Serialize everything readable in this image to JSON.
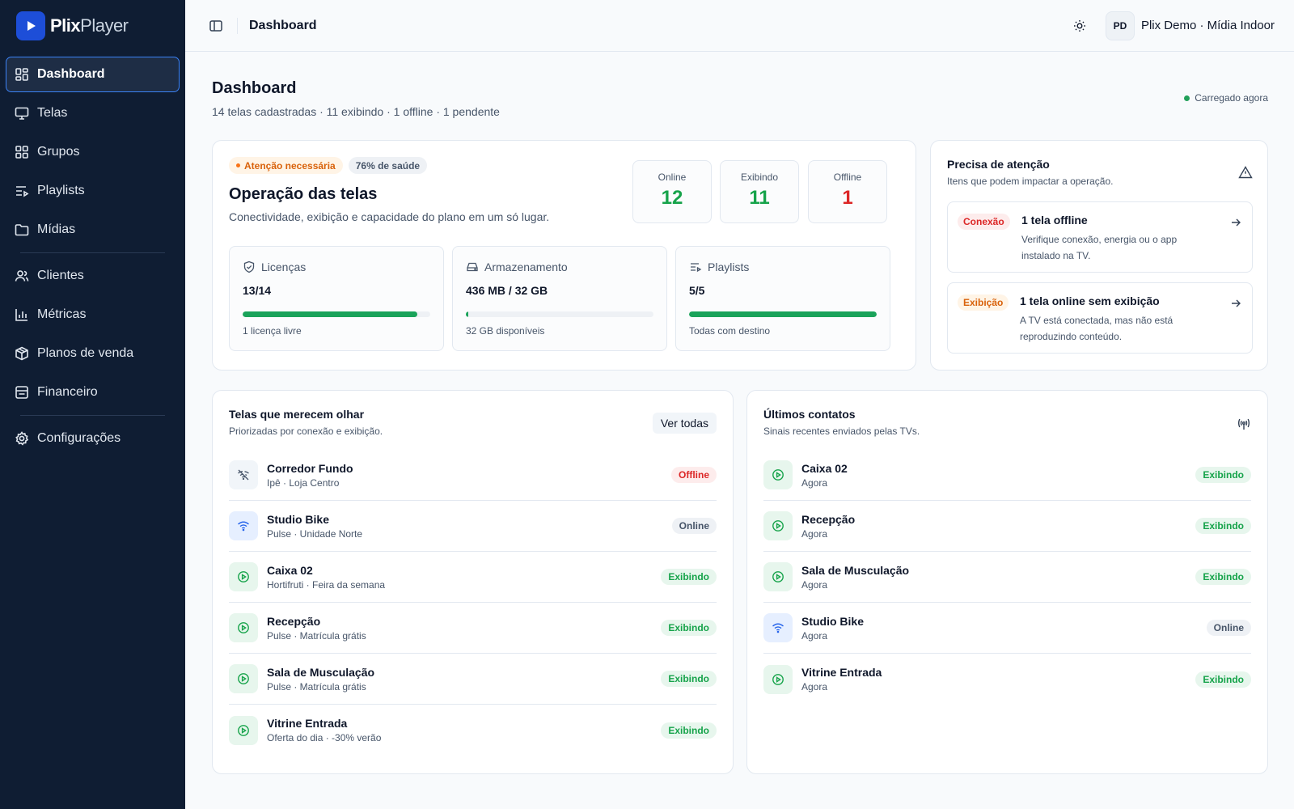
{
  "brand": {
    "name_bold": "Plix",
    "name_light": "Player"
  },
  "sidebar": {
    "items": [
      {
        "label": "Dashboard",
        "icon": "dashboard-icon"
      },
      {
        "label": "Telas",
        "icon": "monitor-icon"
      },
      {
        "label": "Grupos",
        "icon": "grid-icon"
      },
      {
        "label": "Playlists",
        "icon": "playlist-icon"
      },
      {
        "label": "Mídias",
        "icon": "folder-icon"
      },
      {
        "label": "Clientes",
        "icon": "users-icon"
      },
      {
        "label": "Métricas",
        "icon": "bar-chart-icon"
      },
      {
        "label": "Planos de venda",
        "icon": "package-icon"
      },
      {
        "label": "Financeiro",
        "icon": "receipt-icon"
      },
      {
        "label": "Configurações",
        "icon": "gear-icon"
      }
    ]
  },
  "topbar": {
    "title": "Dashboard",
    "avatar_initials": "PD",
    "account": "Plix Demo · Mídia Indoor"
  },
  "page": {
    "title": "Dashboard",
    "subtitle": "14 telas cadastradas · 11 exibindo · 1 offline · 1 pendente",
    "loaded": "Carregado agora"
  },
  "operations": {
    "pill_attention": "Atenção necessária",
    "pill_health": "76% de saúde",
    "title": "Operação das telas",
    "subtitle": "Conectividade, exibição e capacidade do plano em um só lugar.",
    "stats": [
      {
        "label": "Online",
        "value": "12"
      },
      {
        "label": "Exibindo",
        "value": "11"
      },
      {
        "label": "Offline",
        "value": "1"
      }
    ],
    "metrics": [
      {
        "label": "Licenças",
        "value": "13/14",
        "progress": 0.93,
        "footer": "1 licença livre"
      },
      {
        "label": "Armazenamento",
        "value": "436 MB / 32 GB",
        "progress": 0.013,
        "footer": "32 GB disponíveis"
      },
      {
        "label": "Playlists",
        "value": "5/5",
        "progress": 1.0,
        "footer": "Todas com destino"
      }
    ]
  },
  "attention": {
    "title": "Precisa de atenção",
    "subtitle": "Itens que podem impactar a operação.",
    "alerts": [
      {
        "tag": "Conexão",
        "title": "1 tela offline",
        "desc": "Verifique conexão, energia ou o app instalado na TV."
      },
      {
        "tag": "Exibição",
        "title": "1 tela online sem exibição",
        "desc": "A TV está conectada, mas não está reproduzindo conteúdo."
      }
    ]
  },
  "watch": {
    "title": "Telas que merecem olhar",
    "subtitle": "Priorizadas por conexão e exibição.",
    "button": "Ver todas",
    "rows": [
      {
        "name": "Corredor Fundo",
        "sub": "Ipê · Loja Centro",
        "status": "Offline",
        "icon": "wifi-off-icon"
      },
      {
        "name": "Studio Bike",
        "sub": "Pulse · Unidade Norte",
        "status": "Online",
        "icon": "wifi-icon"
      },
      {
        "name": "Caixa 02",
        "sub": "Hortifruti · Feira da semana",
        "status": "Exibindo",
        "icon": "play-circle-icon"
      },
      {
        "name": "Recepção",
        "sub": "Pulse · Matrícula grátis",
        "status": "Exibindo",
        "icon": "play-circle-icon"
      },
      {
        "name": "Sala de Musculação",
        "sub": "Pulse · Matrícula grátis",
        "status": "Exibindo",
        "icon": "play-circle-icon"
      },
      {
        "name": "Vitrine Entrada",
        "sub": "Oferta do dia · -30% verão",
        "status": "Exibindo",
        "icon": "play-circle-icon"
      }
    ]
  },
  "contacts": {
    "title": "Últimos contatos",
    "subtitle": "Sinais recentes enviados pelas TVs.",
    "rows": [
      {
        "name": "Caixa 02",
        "sub": "Agora",
        "status": "Exibindo",
        "icon": "play-circle-icon"
      },
      {
        "name": "Recepção",
        "sub": "Agora",
        "status": "Exibindo",
        "icon": "play-circle-icon"
      },
      {
        "name": "Sala de Musculação",
        "sub": "Agora",
        "status": "Exibindo",
        "icon": "play-circle-icon"
      },
      {
        "name": "Studio Bike",
        "sub": "Agora",
        "status": "Online",
        "icon": "wifi-icon"
      },
      {
        "name": "Vitrine Entrada",
        "sub": "Agora",
        "status": "Exibindo",
        "icon": "play-circle-icon"
      }
    ]
  },
  "colors": {
    "sidebar": "#0f1d33",
    "accent": "#1d4ed8",
    "success": "#16a34a",
    "danger": "#dc2626",
    "warning": "#d9620b"
  }
}
